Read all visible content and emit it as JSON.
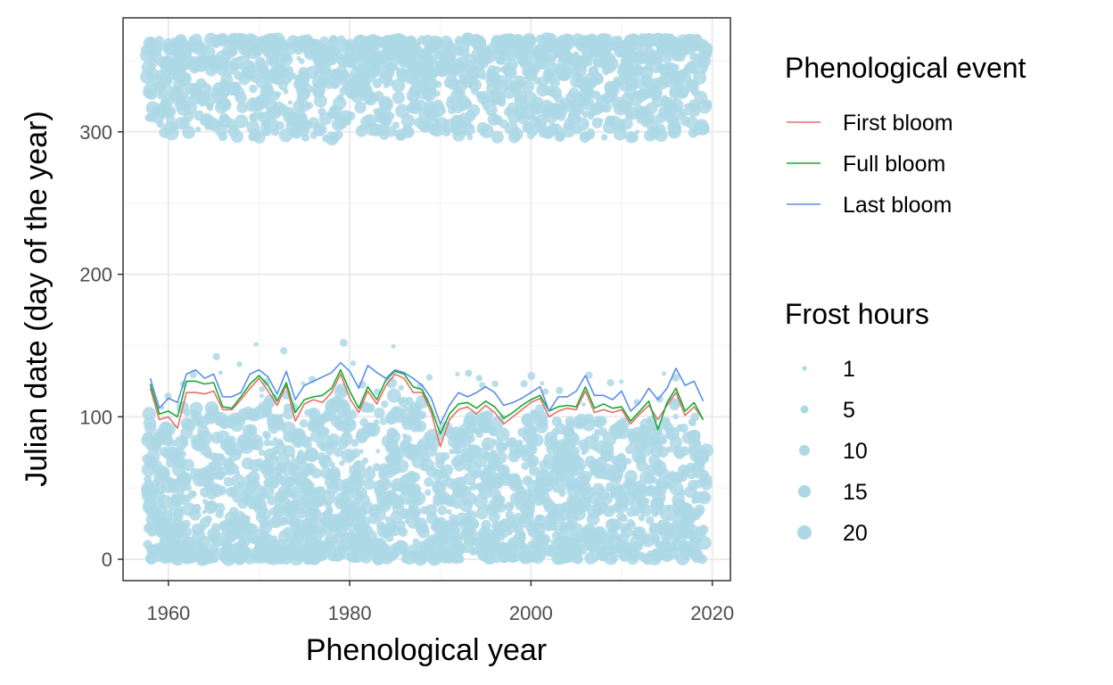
{
  "chart_data": {
    "type": "scatter",
    "title": "",
    "xlabel": "Phenological year",
    "ylabel": "Julian date (day of the year)",
    "xlim": [
      1955,
      2022
    ],
    "ylim": [
      -15,
      380
    ],
    "x_ticks": [
      1960,
      1980,
      2000,
      2020
    ],
    "y_ticks": [
      0,
      100,
      200,
      300
    ],
    "grid": true,
    "legend_position": "right",
    "point_color": "#add8e6",
    "series": [
      {
        "name": "First bloom",
        "color": "#e8706a",
        "x": [
          1958,
          1959,
          1960,
          1961,
          1962,
          1963,
          1964,
          1965,
          1966,
          1967,
          1968,
          1969,
          1970,
          1971,
          1972,
          1973,
          1974,
          1975,
          1976,
          1977,
          1978,
          1979,
          1980,
          1981,
          1982,
          1983,
          1984,
          1985,
          1986,
          1987,
          1988,
          1989,
          1990,
          1991,
          1992,
          1993,
          1994,
          1995,
          1996,
          1997,
          1998,
          1999,
          2000,
          2001,
          2002,
          2003,
          2004,
          2005,
          2006,
          2007,
          2008,
          2009,
          2010,
          2011,
          2012,
          2013,
          2014,
          2015,
          2016,
          2017,
          2018,
          2019
        ],
        "y": [
          120,
          98,
          100,
          92,
          117,
          117,
          116,
          118,
          105,
          105,
          112,
          120,
          127,
          118,
          108,
          122,
          97,
          109,
          112,
          110,
          117,
          130,
          113,
          103,
          118,
          109,
          122,
          130,
          127,
          117,
          117,
          103,
          79,
          98,
          105,
          107,
          102,
          108,
          103,
          95,
          100,
          105,
          110,
          113,
          100,
          104,
          106,
          105,
          118,
          103,
          105,
          103,
          105,
          95,
          102,
          108,
          98,
          108,
          117,
          101,
          107,
          98
        ]
      },
      {
        "name": "Full bloom",
        "color": "#13ad31",
        "x": [
          1958,
          1959,
          1960,
          1961,
          1962,
          1963,
          1964,
          1965,
          1966,
          1967,
          1968,
          1969,
          1970,
          1971,
          1972,
          1973,
          1974,
          1975,
          1976,
          1977,
          1978,
          1979,
          1980,
          1981,
          1982,
          1983,
          1984,
          1985,
          1986,
          1987,
          1988,
          1989,
          1990,
          1991,
          1992,
          1993,
          1994,
          1995,
          1996,
          1997,
          1998,
          1999,
          2000,
          2001,
          2002,
          2003,
          2004,
          2005,
          2006,
          2007,
          2008,
          2009,
          2010,
          2011,
          2012,
          2013,
          2014,
          2015,
          2016,
          2017,
          2018,
          2019
        ],
        "y": [
          123,
          102,
          104,
          100,
          125,
          125,
          123,
          124,
          107,
          106,
          114,
          123,
          129,
          122,
          111,
          124,
          103,
          112,
          114,
          115,
          120,
          133,
          118,
          106,
          121,
          112,
          126,
          132,
          130,
          121,
          119,
          106,
          88,
          102,
          109,
          110,
          106,
          111,
          107,
          99,
          103,
          108,
          112,
          115,
          104,
          107,
          108,
          107,
          121,
          106,
          109,
          106,
          107,
          97,
          104,
          111,
          91,
          110,
          120,
          104,
          110,
          98
        ]
      },
      {
        "name": "Last bloom",
        "color": "#5b8fe6",
        "x": [
          1958,
          1959,
          1960,
          1961,
          1962,
          1963,
          1964,
          1965,
          1966,
          1967,
          1968,
          1969,
          1970,
          1971,
          1972,
          1973,
          1974,
          1975,
          1976,
          1977,
          1978,
          1979,
          1980,
          1981,
          1982,
          1983,
          1984,
          1985,
          1986,
          1987,
          1988,
          1989,
          1990,
          1991,
          1992,
          1993,
          1994,
          1995,
          1996,
          1997,
          1998,
          1999,
          2000,
          2001,
          2002,
          2003,
          2004,
          2005,
          2006,
          2007,
          2008,
          2009,
          2010,
          2011,
          2012,
          2013,
          2014,
          2015,
          2016,
          2017,
          2018,
          2019
        ],
        "y": [
          127,
          106,
          113,
          110,
          130,
          133,
          127,
          130,
          114,
          114,
          117,
          130,
          133,
          128,
          116,
          132,
          112,
          122,
          125,
          128,
          131,
          138,
          132,
          120,
          136,
          131,
          127,
          133,
          131,
          127,
          122,
          113,
          95,
          108,
          117,
          114,
          117,
          121,
          117,
          108,
          110,
          113,
          117,
          121,
          104,
          114,
          114,
          118,
          129,
          115,
          115,
          112,
          118,
          104,
          110,
          120,
          112,
          120,
          134,
          122,
          125,
          111
        ]
      }
    ],
    "size_legend": {
      "title": "Frost hours",
      "values": [
        1,
        5,
        10,
        15,
        20
      ]
    },
    "color_legend": {
      "title": "Phenological event",
      "entries": [
        "First bloom",
        "Full bloom",
        "Last bloom"
      ]
    }
  }
}
